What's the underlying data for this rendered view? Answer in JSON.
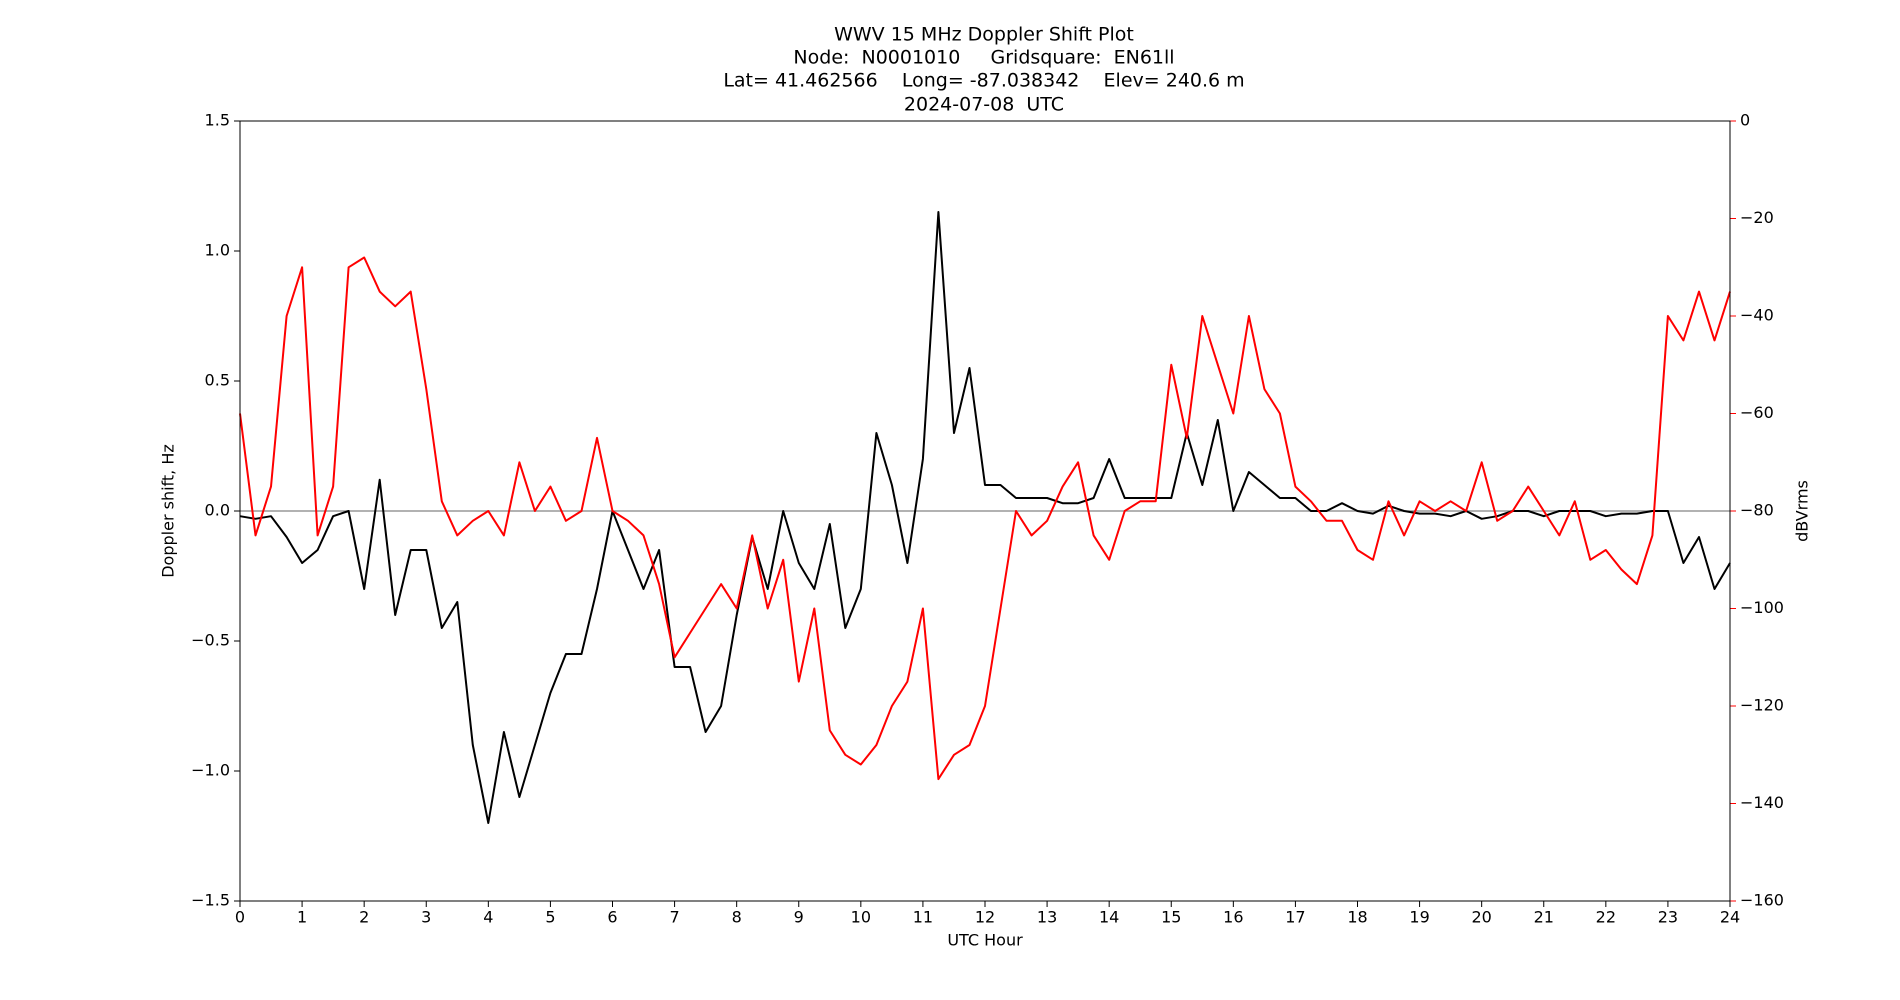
{
  "chart_data": {
    "type": "line",
    "title": "WWV 15 MHz Doppler Shift Plot",
    "subtitle": [
      "Node:  N0001010     Gridsquare:  EN61ll",
      "Lat= 41.462566    Long= -87.038342    Elev= 240.6 m",
      "2024-07-08  UTC"
    ],
    "xlabel": "UTC Hour",
    "ylabel": "Doppler shift, Hz",
    "y2label": "dBVrms",
    "y2color": "#ff0000",
    "x": [
      0,
      0.25,
      0.5,
      0.75,
      1,
      1.25,
      1.5,
      1.75,
      2,
      2.25,
      2.5,
      2.75,
      3,
      3.25,
      3.5,
      3.75,
      4,
      4.25,
      4.5,
      4.75,
      5,
      5.25,
      5.5,
      5.75,
      6,
      6.25,
      6.5,
      6.75,
      7,
      7.25,
      7.5,
      7.75,
      8,
      8.25,
      8.5,
      8.75,
      9,
      9.25,
      9.5,
      9.75,
      10,
      10.25,
      10.5,
      10.75,
      11,
      11.25,
      11.5,
      11.75,
      12,
      12.25,
      12.5,
      12.75,
      13,
      13.25,
      13.5,
      13.75,
      14,
      14.25,
      14.5,
      14.75,
      15,
      15.25,
      15.5,
      15.75,
      16,
      16.25,
      16.5,
      16.75,
      17,
      17.25,
      17.5,
      17.75,
      18,
      18.25,
      18.5,
      18.75,
      19,
      19.25,
      19.5,
      19.75,
      20,
      20.25,
      20.5,
      20.75,
      21,
      21.25,
      21.5,
      21.75,
      22,
      22.25,
      22.5,
      22.75,
      23,
      23.25,
      23.5,
      23.75,
      24
    ],
    "series": [
      {
        "name": "Doppler shift",
        "color": "#000000",
        "axis": "y",
        "values": [
          -0.02,
          -0.03,
          -0.02,
          -0.1,
          -0.2,
          -0.15,
          -0.02,
          0,
          -0.3,
          0.12,
          -0.4,
          -0.15,
          -0.15,
          -0.45,
          -0.35,
          -0.9,
          -1.2,
          -0.85,
          -1.1,
          -0.9,
          -0.7,
          -0.55,
          -0.55,
          -0.3,
          0,
          -0.15,
          -0.3,
          -0.15,
          -0.6,
          -0.6,
          -0.85,
          -0.75,
          -0.4,
          -0.1,
          -0.3,
          0,
          -0.2,
          -0.3,
          -0.05,
          -0.45,
          -0.3,
          0.3,
          0.1,
          -0.2,
          0.2,
          1.15,
          0.3,
          0.55,
          0.1,
          0.1,
          0.05,
          0.05,
          0.05,
          0.03,
          0.03,
          0.05,
          0.2,
          0.05,
          0.05,
          0.05,
          0.05,
          0.3,
          0.1,
          0.35,
          0,
          0.15,
          0.1,
          0.05,
          0.05,
          0,
          0,
          0.03,
          0,
          -0.01,
          0.02,
          0,
          -0.01,
          -0.01,
          -0.02,
          0,
          -0.03,
          -0.02,
          0,
          0,
          -0.02,
          0,
          0,
          0,
          -0.02,
          -0.01,
          -0.01,
          0,
          0,
          -0.2,
          -0.1,
          -0.3,
          -0.2
        ]
      },
      {
        "name": "dBVrms",
        "color": "#ff0000",
        "axis": "y2",
        "values": [
          -60,
          -85,
          -75,
          -40,
          -30,
          -85,
          -75,
          -30,
          -28,
          -35,
          -38,
          -35,
          -55,
          -78,
          -85,
          -82,
          -80,
          -85,
          -70,
          -80,
          -75,
          -82,
          -80,
          -65,
          -80,
          -82,
          -85,
          -95,
          -110,
          -105,
          -100,
          -95,
          -100,
          -85,
          -100,
          -90,
          -115,
          -100,
          -125,
          -130,
          -132,
          -128,
          -120,
          -115,
          -100,
          -135,
          -130,
          -128,
          -120,
          -100,
          -80,
          -85,
          -82,
          -75,
          -70,
          -85,
          -90,
          -80,
          -78,
          -78,
          -50,
          -65,
          -40,
          -50,
          -60,
          -40,
          -55,
          -60,
          -75,
          -78,
          -82,
          -82,
          -88,
          -90,
          -78,
          -85,
          -78,
          -80,
          -78,
          -80,
          -70,
          -82,
          -80,
          -75,
          -80,
          -85,
          -78,
          -90,
          -88,
          -92,
          -95,
          -85,
          -40,
          -45,
          -35,
          -45,
          -35
        ]
      }
    ],
    "hline": 0,
    "hline_color": "#999999",
    "xlim": [
      0,
      24
    ],
    "xticks": [
      0,
      1,
      2,
      3,
      4,
      5,
      6,
      7,
      8,
      9,
      10,
      11,
      12,
      13,
      14,
      15,
      16,
      17,
      18,
      19,
      20,
      21,
      22,
      23,
      24
    ],
    "ylim": [
      -1.5,
      1.5
    ],
    "yticks": [
      {
        "value": -1.5,
        "label": "−1.5"
      },
      {
        "value": -1,
        "label": "−1.0"
      },
      {
        "value": -0.5,
        "label": "−0.5"
      },
      {
        "value": 0,
        "label": "0.0"
      },
      {
        "value": 0.5,
        "label": "0.5"
      },
      {
        "value": 1,
        "label": "1.0"
      },
      {
        "value": 1.5,
        "label": "1.5"
      }
    ],
    "y2lim": [
      -160,
      0
    ],
    "y2ticks": [
      {
        "value": -160,
        "label": "−160"
      },
      {
        "value": -140,
        "label": "−140"
      },
      {
        "value": -120,
        "label": "−120"
      },
      {
        "value": -100,
        "label": "−100"
      },
      {
        "value": -80,
        "label": "−80"
      },
      {
        "value": -60,
        "label": "−60"
      },
      {
        "value": -40,
        "label": "−40"
      },
      {
        "value": -20,
        "label": "−20"
      },
      0
    ]
  }
}
